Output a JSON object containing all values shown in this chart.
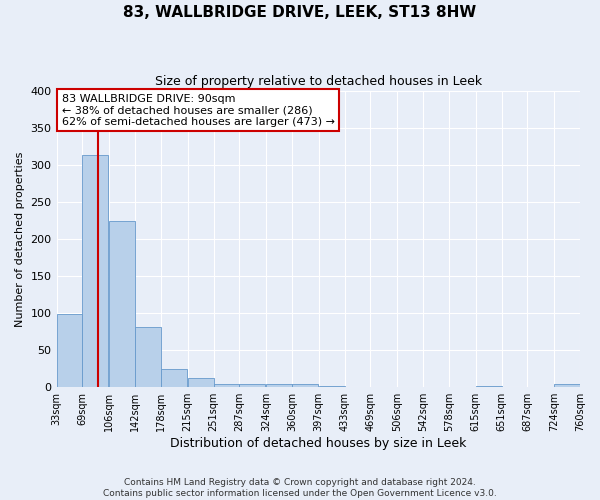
{
  "title": "83, WALLBRIDGE DRIVE, LEEK, ST13 8HW",
  "subtitle": "Size of property relative to detached houses in Leek",
  "xlabel": "Distribution of detached houses by size in Leek",
  "ylabel": "Number of detached properties",
  "footer_line1": "Contains HM Land Registry data © Crown copyright and database right 2024.",
  "footer_line2": "Contains public sector information licensed under the Open Government Licence v3.0.",
  "bin_edges": [
    33,
    69,
    106,
    142,
    178,
    215,
    251,
    287,
    324,
    360,
    397,
    433,
    469,
    506,
    542,
    578,
    615,
    651,
    687,
    724,
    760
  ],
  "bin_counts": [
    99,
    313,
    224,
    81,
    25,
    13,
    5,
    5,
    5,
    5,
    1,
    0,
    0,
    0,
    0,
    0,
    1,
    0,
    0,
    5
  ],
  "red_line_x": 90,
  "annotation_title": "83 WALLBRIDGE DRIVE: 90sqm",
  "annotation_line2": "← 38% of detached houses are smaller (286)",
  "annotation_line3": "62% of semi-detached houses are larger (473) →",
  "bar_color": "#b8d0ea",
  "bar_edge_color": "#6699cc",
  "red_line_color": "#cc0000",
  "annotation_box_facecolor": "#ffffff",
  "annotation_box_edgecolor": "#cc0000",
  "background_color": "#e8eef8",
  "ylim": [
    0,
    400
  ],
  "yticks": [
    0,
    50,
    100,
    150,
    200,
    250,
    300,
    350,
    400
  ],
  "grid_color": "#ffffff",
  "title_fontsize": 11,
  "subtitle_fontsize": 9,
  "ylabel_fontsize": 8,
  "xlabel_fontsize": 9,
  "annotation_fontsize": 8,
  "footer_fontsize": 6.5
}
